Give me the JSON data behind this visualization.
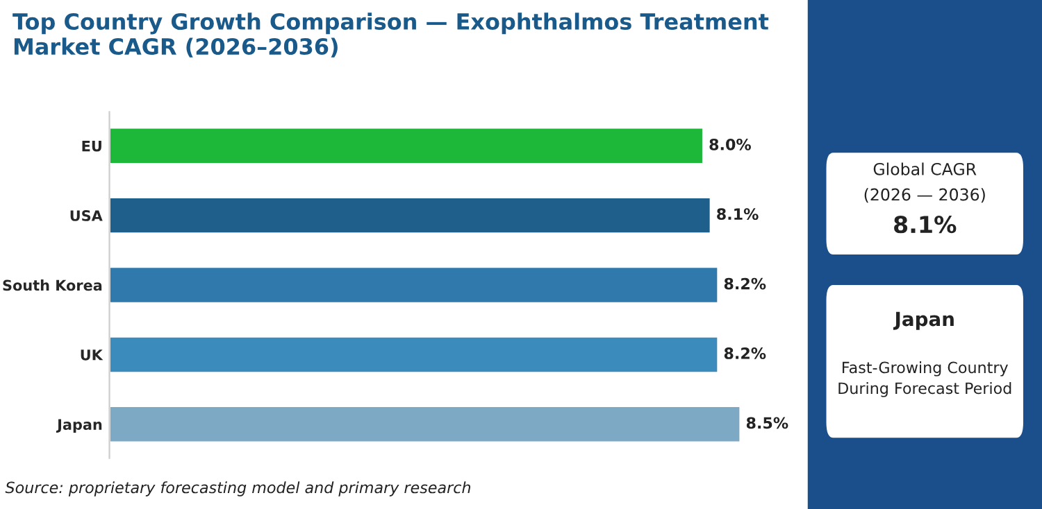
{
  "chart_data": [
    {
      "type": "bar",
      "orientation": "horizontal",
      "title": "Top Country Growth Comparison — Exophthalmos Treatment Market CAGR (2026–2036)",
      "categories": [
        "EU",
        "USA",
        "South Korea",
        "UK",
        "Japan"
      ],
      "values": [
        8.0,
        8.1,
        8.2,
        8.2,
        8.5
      ],
      "colors": [
        "#1db83a",
        "#1f5f8c",
        "#2f79ad",
        "#3b8bbd",
        "#7ea9c5"
      ],
      "value_labels": [
        "8.0%",
        "8.1%",
        "8.2%",
        "8.2%",
        "8.5%"
      ],
      "tick_labels": "y",
      "grid": false,
      "annotations": [
        "Source: proprietary forecasting model and primary research"
      ]
    },
    {
      "type": "other",
      "annotations": [
        "Global CAGR",
        "(2026 — 2036)",
        "8.1%",
        "Japan",
        "Fast-Growing Country\nDuring Forecast Period"
      ]
    }
  ]
}
